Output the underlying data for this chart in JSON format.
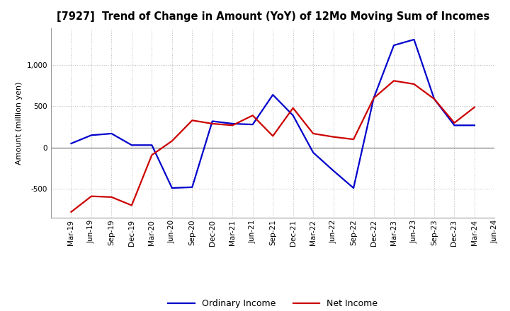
{
  "title": "[7927]  Trend of Change in Amount (YoY) of 12Mo Moving Sum of Incomes",
  "ylabel": "Amount (million yen)",
  "x_labels": [
    "Mar-19",
    "Jun-19",
    "Sep-19",
    "Dec-19",
    "Mar-20",
    "Jun-20",
    "Sep-20",
    "Dec-20",
    "Mar-21",
    "Jun-21",
    "Sep-21",
    "Dec-21",
    "Mar-22",
    "Jun-22",
    "Sep-22",
    "Dec-22",
    "Mar-23",
    "Jun-23",
    "Sep-23",
    "Dec-23",
    "Mar-24",
    "Jun-24"
  ],
  "ordinary_income": [
    50,
    150,
    170,
    30,
    30,
    -490,
    -480,
    320,
    290,
    280,
    640,
    390,
    -60,
    -280,
    -490,
    600,
    1240,
    1310,
    590,
    270,
    270,
    null
  ],
  "net_income": [
    -780,
    -590,
    -600,
    -700,
    -90,
    80,
    330,
    290,
    270,
    390,
    140,
    480,
    170,
    130,
    100,
    600,
    810,
    770,
    590,
    300,
    490,
    null
  ],
  "ordinary_income_color": "#0000cc",
  "net_income_color": "#cc0000",
  "ylim": [
    -850,
    1450
  ],
  "yticks": [
    -500,
    0,
    500,
    1000
  ],
  "background_color": "#ffffff",
  "grid_color": "#bbbbbb",
  "line_width": 1.6,
  "title_fontsize": 10.5,
  "ylabel_fontsize": 8,
  "tick_fontsize": 7.5,
  "legend_fontsize": 9
}
